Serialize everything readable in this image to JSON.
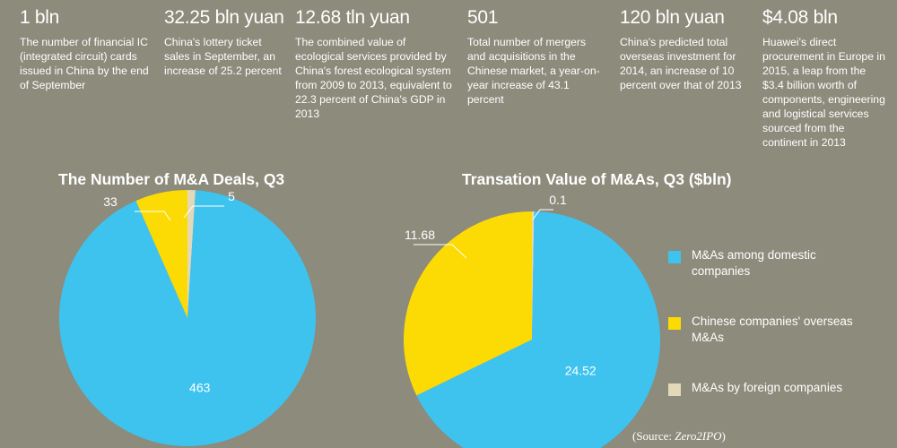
{
  "stats": [
    {
      "value": "1 bln",
      "desc": "The number of financial IC (integrated circuit) cards issued in China by the end of September"
    },
    {
      "value": "32.25 bln yuan",
      "desc": "China's lottery ticket sales in September, an increase of 25.2 percent"
    },
    {
      "value": "12.68 tln yuan",
      "desc": "The combined value of ecological services provided by China's forest ecological system from 2009 to 2013, equivalent to 22.3 percent of China's GDP in 2013"
    },
    {
      "value": "501",
      "desc": "Total number of mergers and acquisitions in the Chinese market, a year-on-year increase of 43.1 percent"
    },
    {
      "value": "120 bln yuan",
      "desc": "China's predicted total overseas investment for 2014, an increase of 10 percent over that of 2013"
    },
    {
      "value": "$4.08 bln",
      "desc": "Huawei's direct procurement in Europe in 2015, a leap from the $3.4 billion worth of components, engineering and logistical services sourced from the continent in 2013"
    }
  ],
  "chart_data": [
    {
      "type": "pie",
      "title": "The Number of M&A Deals, Q3",
      "categories": [
        "M&As among domestic companies",
        "Chinese companies' overseas M&As",
        "M&As by foreign companies"
      ],
      "values": [
        463,
        33,
        5
      ],
      "labels": [
        "463",
        "33",
        "5"
      ]
    },
    {
      "type": "pie",
      "title": "Transation Value of M&As, Q3 ($bln)",
      "categories": [
        "M&As among domestic companies",
        "Chinese companies' overseas M&As",
        "M&As by foreign companies"
      ],
      "values": [
        24.52,
        11.68,
        0.1
      ],
      "labels": [
        "24.52",
        "11.68",
        "0.1"
      ]
    }
  ],
  "legend": [
    {
      "label": "M&As among domestic companies",
      "color": "#3ec3ef"
    },
    {
      "label": "Chinese companies' overseas M&As",
      "color": "#fcdb05"
    },
    {
      "label": "M&As by foreign companies",
      "color": "#e3d9b8"
    }
  ],
  "colors": {
    "domestic": "#3ec3ef",
    "overseas": "#fcdb05",
    "foreign": "#e3d9b8",
    "background": "#8c8b7c"
  },
  "source": {
    "prefix": "(Source: ",
    "name": "Zero2IPO",
    "suffix": ")"
  }
}
